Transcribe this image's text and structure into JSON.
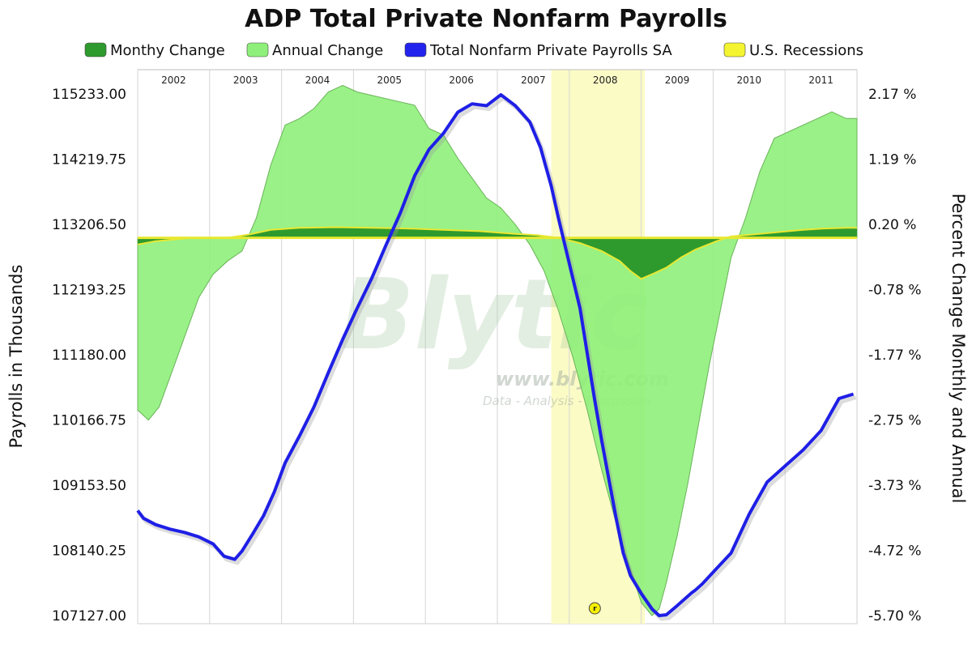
{
  "chart_data": {
    "type": "area",
    "title": "ADP Total Private Nonfarm Payrolls",
    "ylabel_left": "Payrolls in Thousands",
    "ylabel_right": "Percent Change Monthly and Annual",
    "ylim_left": [
      107127,
      115233
    ],
    "ylim_right": [
      -5.7,
      2.17
    ],
    "yticks_left": [
      "115233.00",
      "114219.75",
      "113206.50",
      "112193.25",
      "111180.00",
      "110166.75",
      "109153.50",
      "108140.25",
      "107127.00"
    ],
    "yticks_right": [
      "2.17 %",
      "1.19 %",
      "0.20 %",
      "-0.78 %",
      "-1.77 %",
      "-2.75 %",
      "-3.73 %",
      "-4.72 %",
      "-5.70 %"
    ],
    "xlim": [
      2001.75,
      2011.75
    ],
    "years": [
      "2002",
      "2003",
      "2004",
      "2005",
      "2006",
      "2007",
      "2008",
      "2009",
      "2010",
      "2011"
    ],
    "recession": [
      2007.5,
      2008.8
    ],
    "colors": {
      "monthly": "#2e9a2e",
      "annual": "#8ef07a",
      "payrolls": "#1f1fe6",
      "recession": "#fbfbc6",
      "recession_legend": "#f4f430"
    },
    "legend": [
      {
        "label": "Monthy Change",
        "color": "#2e9a2e"
      },
      {
        "label": "Annual Change",
        "color": "#8ef07a"
      },
      {
        "label": "Total Nonfarm Private Payrolls SA",
        "color": "#2323ee"
      },
      {
        "label": "U.S. Recessions",
        "color": "#f4f430"
      }
    ],
    "series": [
      {
        "name": "Total Nonfarm Private Payrolls SA",
        "axis": "left",
        "x": [
          2001.75,
          2001.83,
          2002.0,
          2002.2,
          2002.4,
          2002.6,
          2002.8,
          2002.95,
          2003.1,
          2003.2,
          2003.35,
          2003.5,
          2003.65,
          2003.8,
          2004.0,
          2004.2,
          2004.4,
          2004.6,
          2004.8,
          2005.0,
          2005.2,
          2005.4,
          2005.6,
          2005.8,
          2006.0,
          2006.2,
          2006.4,
          2006.6,
          2006.8,
          2007.0,
          2007.2,
          2007.35,
          2007.5,
          2007.6,
          2007.75,
          2007.9,
          2008.0,
          2008.1,
          2008.2,
          2008.3,
          2008.4,
          2008.5,
          2008.6,
          2008.75,
          2008.9,
          2009.0,
          2009.1,
          2009.25,
          2009.35,
          2009.45,
          2009.5,
          2009.6,
          2009.75,
          2010.0,
          2010.25,
          2010.5,
          2010.75,
          2011.0,
          2011.25,
          2011.5,
          2011.7
        ],
        "values": [
          108760,
          108640,
          108540,
          108470,
          108420,
          108350,
          108240,
          108050,
          108000,
          108130,
          108400,
          108680,
          109050,
          109500,
          109920,
          110370,
          110900,
          111420,
          111900,
          112360,
          112880,
          113380,
          113960,
          114370,
          114620,
          114950,
          115080,
          115050,
          115220,
          115050,
          114800,
          114400,
          113800,
          113300,
          112600,
          111900,
          111200,
          110500,
          109850,
          109250,
          108650,
          108100,
          107750,
          107470,
          107230,
          107127,
          107140,
          107280,
          107380,
          107480,
          107520,
          107620,
          107800,
          108100,
          108700,
          109200,
          109450,
          109700,
          110000,
          110500,
          110570
        ]
      },
      {
        "name": "Annual Change",
        "axis": "right",
        "x": [
          2001.75,
          2001.9,
          2002.05,
          2002.2,
          2002.4,
          2002.6,
          2002.8,
          2003.0,
          2003.2,
          2003.4,
          2003.6,
          2003.8,
          2004.0,
          2004.2,
          2004.4,
          2004.6,
          2004.8,
          2005.0,
          2005.2,
          2005.4,
          2005.6,
          2005.8,
          2006.0,
          2006.2,
          2006.4,
          2006.6,
          2006.8,
          2007.0,
          2007.2,
          2007.4,
          2007.6,
          2007.8,
          2008.0,
          2008.2,
          2008.4,
          2008.6,
          2008.75,
          2008.9,
          2009.0,
          2009.1,
          2009.25,
          2009.4,
          2009.55,
          2009.7,
          2009.85,
          2010.0,
          2010.2,
          2010.4,
          2010.6,
          2010.8,
          2011.0,
          2011.2,
          2011.4,
          2011.6,
          2011.75
        ],
        "values": [
          -2.6,
          -2.75,
          -2.55,
          -2.1,
          -1.5,
          -0.9,
          -0.55,
          -0.35,
          -0.2,
          0.3,
          1.1,
          1.7,
          1.8,
          1.95,
          2.2,
          2.3,
          2.2,
          2.15,
          2.1,
          2.05,
          2.0,
          1.65,
          1.55,
          1.2,
          0.9,
          0.6,
          0.45,
          0.2,
          -0.1,
          -0.5,
          -1.1,
          -1.8,
          -2.6,
          -3.5,
          -4.3,
          -5.0,
          -5.5,
          -5.7,
          -5.6,
          -5.2,
          -4.5,
          -3.7,
          -2.8,
          -1.9,
          -1.1,
          -0.3,
          0.3,
          1.0,
          1.5,
          1.6,
          1.7,
          1.8,
          1.9,
          1.8,
          1.8
        ]
      },
      {
        "name": "Monthy Change",
        "axis": "right",
        "x": [
          2001.75,
          2002.0,
          2002.5,
          2003.0,
          2003.3,
          2003.6,
          2004.0,
          2004.5,
          2005.0,
          2005.5,
          2006.0,
          2006.5,
          2007.0,
          2007.3,
          2007.6,
          2007.9,
          2008.2,
          2008.45,
          2008.6,
          2008.75,
          2008.9,
          2009.1,
          2009.3,
          2009.5,
          2009.8,
          2010.0,
          2010.3,
          2010.6,
          2011.0,
          2011.3,
          2011.6,
          2011.75
        ],
        "values": [
          -0.1,
          -0.05,
          0.0,
          0.0,
          0.05,
          0.12,
          0.15,
          0.16,
          0.15,
          0.14,
          0.12,
          0.1,
          0.06,
          0.04,
          0.0,
          -0.08,
          -0.2,
          -0.35,
          -0.5,
          -0.62,
          -0.55,
          -0.45,
          -0.3,
          -0.18,
          -0.05,
          0.02,
          0.05,
          0.08,
          0.12,
          0.14,
          0.15,
          0.15
        ]
      }
    ],
    "grid": true,
    "legend_placement": "top"
  },
  "watermark": {
    "brand": "Blytic",
    "url": "www.blytic.com",
    "tagline": "Data - Analysis - Discussion"
  }
}
